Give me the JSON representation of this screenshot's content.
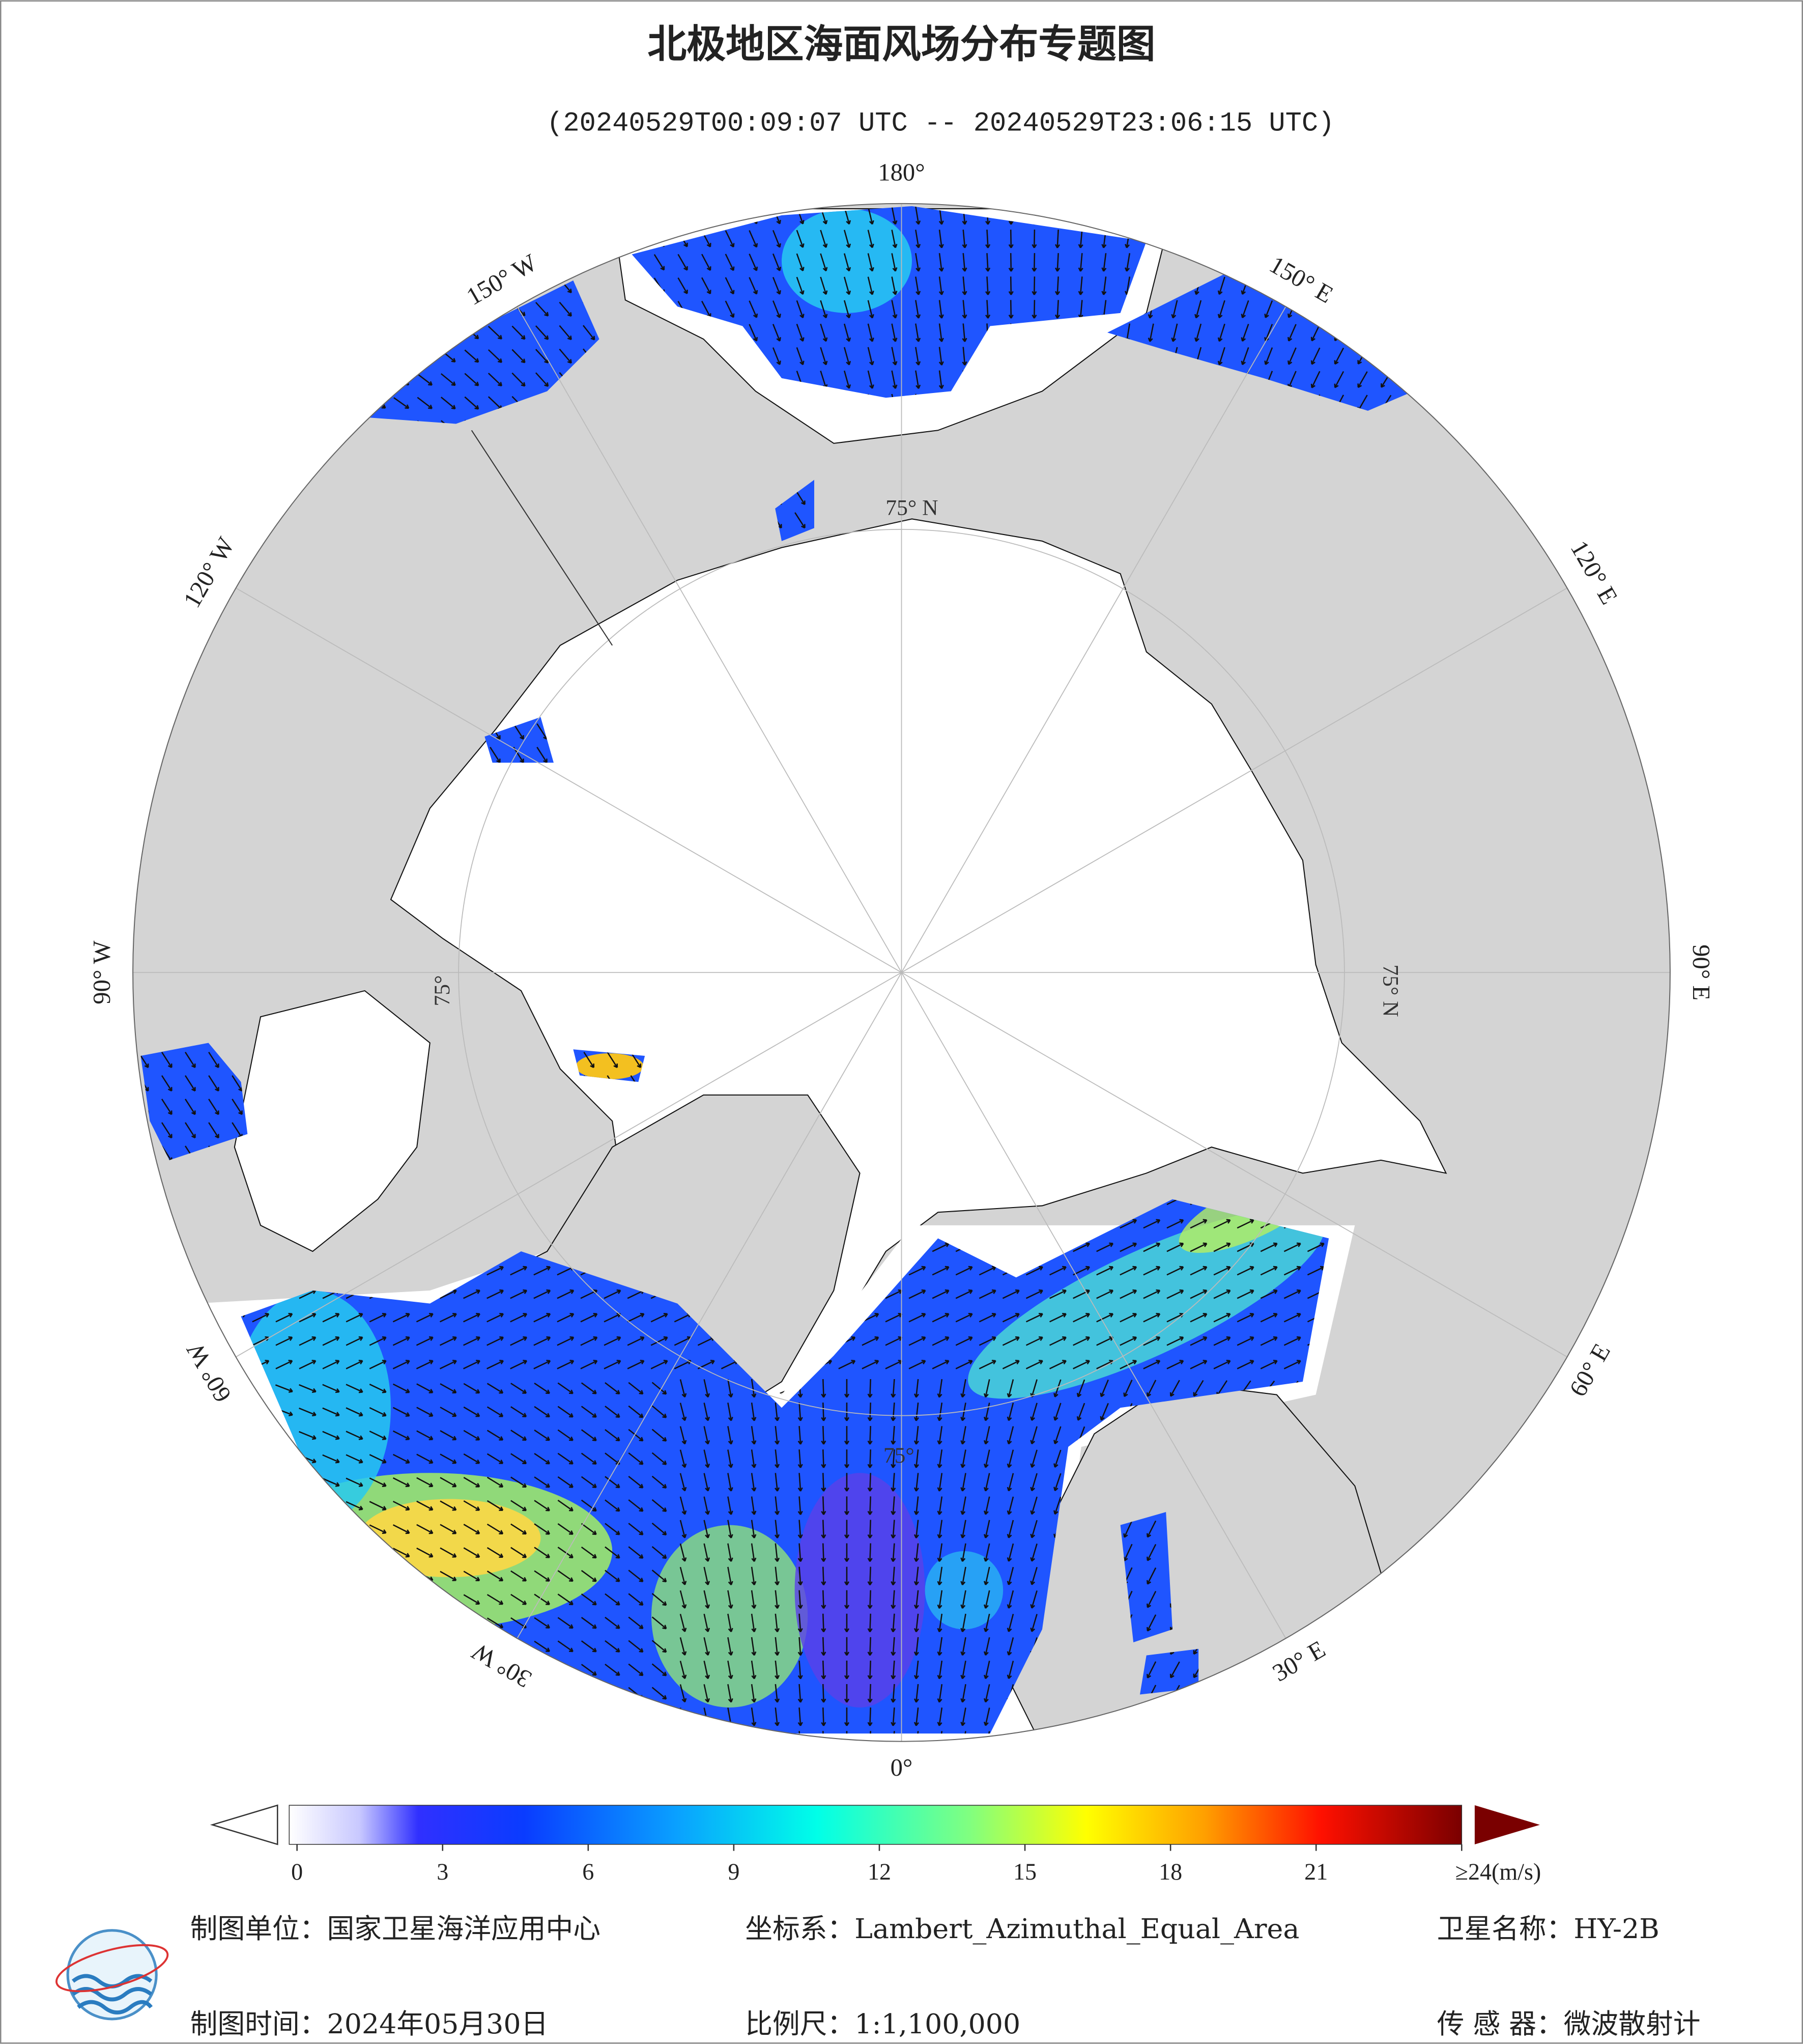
{
  "header": {
    "title": "北极地区海面风场分布专题图",
    "subtitle": "(20240529T00:09:07 UTC -- 20240529T23:06:15 UTC)"
  },
  "map": {
    "longitude_labels": [
      "0°",
      "30° E",
      "60° E",
      "90° E",
      "120° E",
      "150° E",
      "180°",
      "150° W",
      "120° W",
      "90° W",
      "60° W",
      "30° W"
    ],
    "latitude_labels": [
      "75° N",
      "75° N",
      "75°",
      "75°"
    ]
  },
  "colorbar": {
    "range": [
      0,
      24
    ],
    "ticks": [
      0,
      3,
      6,
      9,
      12,
      15,
      18,
      21,
      {
        "value": 24,
        "label": "≥24(m/s)"
      }
    ]
  },
  "footer": {
    "unit": "制图单位：国家卫星海洋应用中心",
    "crs": "坐标系：Lambert_Azimuthal_Equal_Area",
    "satellite": "卫星名称：HY-2B",
    "date": "制图时间：2024年05月30日",
    "scale": "比例尺：1:1,100,000",
    "sensor": "传 感 器：微波散射计"
  }
}
